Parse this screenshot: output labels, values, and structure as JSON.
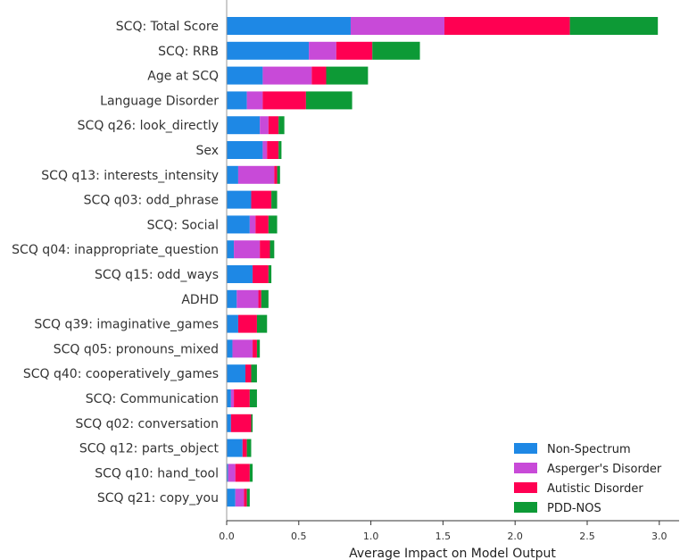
{
  "chart_data": {
    "type": "bar",
    "orientation": "horizontal",
    "stacked": true,
    "xlabel": "Average Impact on Model Output",
    "xlim": [
      0,
      3.1
    ],
    "xticks": [
      "0.0",
      "0.5",
      "1.0",
      "1.5",
      "2.0",
      "2.5",
      "3.0"
    ],
    "grid": false,
    "legend_position": "lower-right",
    "categories": [
      "SCQ: Total Score",
      "SCQ: RRB",
      "Age at SCQ",
      "Language Disorder",
      "SCQ q26: look_directly",
      "Sex",
      "SCQ q13: interests_intensity",
      "SCQ q03: odd_phrase",
      "SCQ: Social",
      "SCQ q04: inappropriate_question",
      "SCQ q15: odd_ways",
      "ADHD",
      "SCQ q39: imaginative_games",
      "SCQ q05: pronouns_mixed",
      "SCQ q40: cooperatively_games",
      "SCQ: Communication",
      "SCQ q02: conversation",
      "SCQ q12: parts_object",
      "SCQ q10: hand_tool",
      "SCQ q21: copy_you"
    ],
    "series": [
      {
        "name": "Non-Spectrum",
        "color": "#1e88e5",
        "values": [
          0.86,
          0.57,
          0.25,
          0.14,
          0.23,
          0.25,
          0.08,
          0.17,
          0.16,
          0.05,
          0.18,
          0.07,
          0.08,
          0.04,
          0.13,
          0.03,
          0.03,
          0.11,
          0.01,
          0.06
        ]
      },
      {
        "name": "Asperger's Disorder",
        "color": "#c84ad8",
        "values": [
          0.65,
          0.19,
          0.34,
          0.11,
          0.06,
          0.03,
          0.25,
          0.0,
          0.04,
          0.18,
          0.0,
          0.15,
          0.0,
          0.14,
          0.0,
          0.02,
          0.0,
          0.0,
          0.05,
          0.06
        ]
      },
      {
        "name": "Autistic Disorder",
        "color": "#ff0052",
        "values": [
          0.87,
          0.25,
          0.1,
          0.3,
          0.07,
          0.08,
          0.02,
          0.14,
          0.09,
          0.07,
          0.11,
          0.02,
          0.13,
          0.03,
          0.04,
          0.11,
          0.14,
          0.03,
          0.1,
          0.02
        ],
        "legend_label": "Autistic Disorder"
      },
      {
        "name": "PDD-NOS",
        "color": "#0d9a36",
        "values": [
          0.61,
          0.33,
          0.29,
          0.32,
          0.04,
          0.02,
          0.02,
          0.04,
          0.06,
          0.03,
          0.02,
          0.05,
          0.07,
          0.02,
          0.04,
          0.05,
          0.01,
          0.03,
          0.02,
          0.02
        ]
      }
    ]
  }
}
